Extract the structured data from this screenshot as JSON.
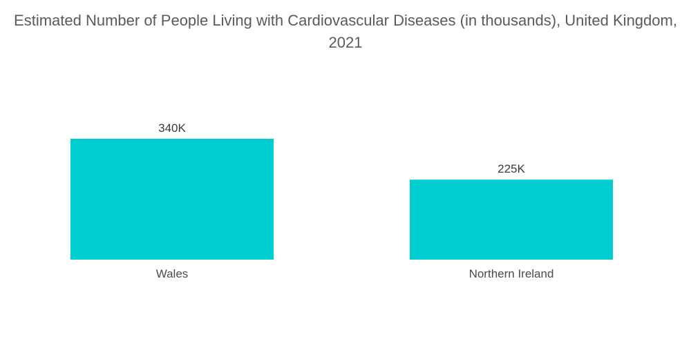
{
  "chart_data": {
    "type": "bar",
    "title": "Estimated Number of People Living with Cardiovascular Diseases (in thousands), United Kingdom, 2021",
    "categories": [
      "Wales",
      "Northern Ireland"
    ],
    "values": [
      340,
      225
    ],
    "value_labels": [
      "340K",
      "225K"
    ],
    "xlabel": "",
    "ylabel": "",
    "grid": false,
    "legend": "none",
    "bar_color": "#00CED1"
  }
}
